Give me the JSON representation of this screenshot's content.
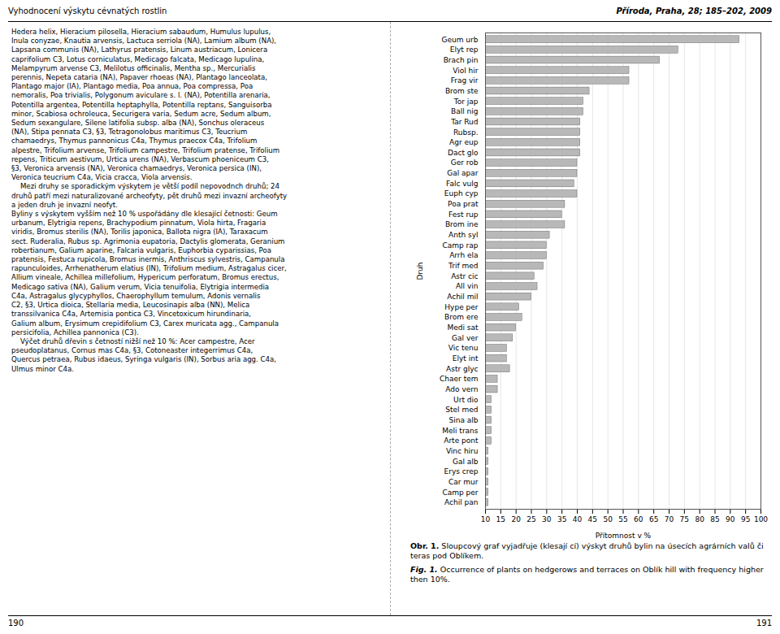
{
  "chart_data": {
    "type": "bar",
    "orientation": "horizontal",
    "xlabel": "Přítomnost v %",
    "ylabel": "Druh",
    "categories": [
      "Geum urb",
      "Elyt rep",
      "Brach pin",
      "Viol hir",
      "Frag vir",
      "Brom ste",
      "Tor jap",
      "Ball nig",
      "Tar Rud",
      "Rubsp.",
      "Agr eup",
      "Dact glo",
      "Ger rob",
      "Gal apar",
      "Falc vulg",
      "Euph cyp",
      "Poa prat",
      "Fest rup",
      "Brom ine",
      "Anth syl",
      "Camp rap",
      "Arrh ela",
      "Trif med",
      "Astr cic",
      "All vin",
      "Achil mil",
      "Hype per",
      "Brom ere",
      "Medi sat",
      "Gal ver",
      "Vic tenu",
      "Elyt int",
      "Astr glyc",
      "Chaer tem",
      "Ado vern",
      "Urt dio",
      "Stel med",
      "Sina alb",
      "Meli trans",
      "Arte pont",
      "Vinc hiru",
      "Gal alb",
      "Erys crep",
      "Car mur",
      "Camp per",
      "Achil pan"
    ],
    "values": [
      93,
      73,
      67,
      57,
      57,
      44,
      42,
      42,
      41,
      41,
      41,
      41,
      40,
      40,
      39,
      40,
      36,
      35,
      36,
      31,
      30,
      30,
      29,
      26,
      27,
      25,
      21,
      22,
      20,
      19,
      17,
      17,
      18,
      14,
      14,
      12,
      12,
      12,
      12,
      12,
      11,
      11,
      11,
      11,
      11,
      11
    ],
    "color": "#b8b8b8",
    "xlim": [
      10,
      100
    ],
    "xticks": [
      10,
      15,
      20,
      25,
      30,
      35,
      40,
      45,
      50,
      55,
      60,
      65,
      70,
      75,
      80,
      85,
      90,
      95,
      100
    ],
    "grid": true,
    "annotations": [
      "Vyhodnocení výskytu cévnatých rostlin",
      "Příroda, Praha, 28; 185–202, 2009",
      "190",
      "191",
      "Hedera helix, Hieracium pilosella, Hieracium sabaudum, Humulus lupulus,",
      "Inula conyzae, Knautia arvensis, Lactuca serriola (NA), Lamium album (NA),",
      "Lapsana communis (NA), Lathyrus pratensis, Linum austriacum, Lonicera",
      "caprifolium C3, Lotus corniculatus, Medicago falcata, Medicago lupulina,",
      "Melampyrum arvense C3, Melilotus officinalis, Mentha sp., Mercurialis",
      "perennis, Nepeta cataria (NA), Papaver rhoeas (NA), Plantago lanceolata,",
      "Plantago major (IA), Plantago media, Poa annua, Poa compressa, Poa",
      "nemoralis, Poa trivialis, Polygonum aviculare s. l. (NA), Potentilla arenaria,",
      "Potentilla argentea, Potentilla heptaphylla, Potentilla reptans, Sanguisorba",
      "minor, Scabiosa ochroleuca, Securigera varia, Sedum acre, Sedum album,",
      "Sedum sexangulare, Silene latifolia subsp. alba (NA), Sonchus oleraceus",
      "(NA), Stipa pennata C3, §3, Tetragonolobus maritimus C3, Teucrium",
      "chamaedrys, Thymus pannonicus C4a, Thymus praecox C4a, Trifolium",
      "alpestre, Trifolium arvense, Trifolium campestre, Trifolium pratense, Trifolium",
      "repens, Triticum aestivum, Urtica urens (NA), Verbascum phoeniceum C3,",
      "§3, Veronica arvensis (NA), Veronica chamaedrys, Veronica persica (IN),",
      "Veronica teucrium C4a, Vicia cracca, Viola arvensis.",
      "    Mezi druhy se sporadickým výskytem je větší podíl nepovodnch druhů; 24",
      "druhů patří mezi naturalizované archeofyty, pět druhů mezi invazní archeofyty",
      "a jeden druh je invazní neofyt.",
      "Byliny s výskytem vyšším než 10 % uspořádány dle klesající četnosti: Geum",
      "urbanum, Elytrigia repens, Brachypodium pinnatum, Viola hirta, Fragaria",
      "viridis, Bromus sterilis (NA), Torilis japonica, Ballota nigra (IA), Taraxacum",
      "sect. Ruderalia, Rubus sp. Agrimonia eupatoria, Dactylis glomerata, Geranium",
      "robertianum, Galium aparine, Falcaria vulgaris, Euphorbia cyparissias, Poa",
      "pratensis, Festuca rupicola, Bromus inermis, Anthriscus sylvestris, Campanula",
      "rapunculoides, Arrhenatherum elatius (IN), Trifolium medium, Astragalus cicer,",
      "Allium vineale, Achillea millefolium, Hypericum perforatum, Bromus erectus,",
      "Medicago sativa (NA), Galium verum, Vicia tenuifolia, Elytrigia intermedia",
      "C4a, Astragalus glycyphyllos, Chaerophyllum temulum, Adonis vernalis",
      "C2, §3, Urtica dioica, Stellaria media, Leucosinapis alba (NN), Melica",
      "transsilvanica C4a, Artemisia pontica C3, Vincetoxicum hirundinaria,",
      "Galium album, Erysimum crepidifolium C3, Carex muricata agg., Campanula",
      "persicifolia, Achillea pannonica (C3).",
      "    Výčet druhů dřevin s četností nižší než 10 %: Acer campestre, Acer",
      "pseudoplatanus, Cornus mas C4a, §3, Cotoneaster integerrimus C4a,",
      "Quercus petraea, Rubus idaeus, Syringa vulgaris (IN), Sorbus aria agg. C4a,",
      "Ulmus minor C4a.",
      "Obr. 1.",
      "Sloupcový graf vyjadřuje (klesají cí) výskyt druhů bylin na úsecích agrárních valů či teras pod Oblíkem.",
      "Fig. 1.",
      "Occurrence of plants on hedgerows and terraces on Oblík hill with frequency higher then 10%."
    ]
  }
}
